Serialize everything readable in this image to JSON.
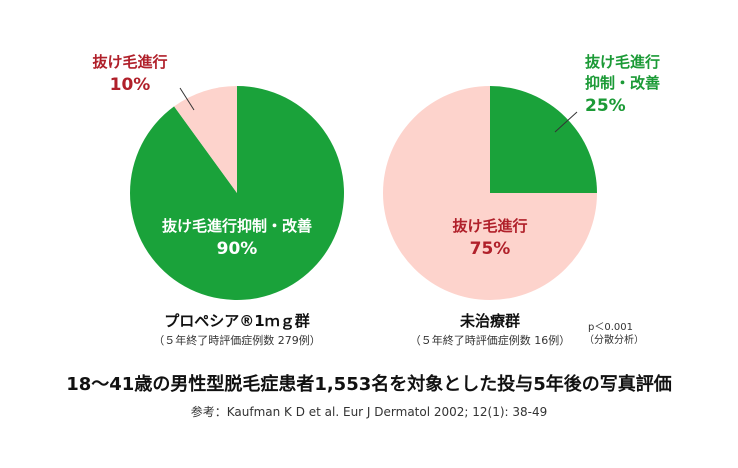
{
  "chart_data": [
    {
      "type": "pie",
      "title": "プロペシア®1ｍｇ群",
      "subtitle": "（５年終了時評価症例数 279例）",
      "categories": [
        "抜け毛進行抑制・改善",
        "抜け毛進行"
      ],
      "values": [
        90,
        10
      ],
      "value_labels": [
        "90%",
        "10%"
      ],
      "colors": [
        "#1aa23a",
        "#fdd3cc"
      ]
    },
    {
      "type": "pie",
      "title": "未治療群",
      "subtitle": "（５年終了時評価症例数 16例）",
      "categories": [
        "抜け毛進行抑制・改善",
        "抜け毛進行"
      ],
      "values": [
        25,
        75
      ],
      "value_labels": [
        "25%",
        "75%"
      ],
      "colors": [
        "#1aa23a",
        "#fdd3cc"
      ]
    }
  ],
  "annotation": [
    "p＜0.001",
    "（分散分析）"
  ],
  "caption": "18～41歳の男性型脱毛症患者1,553名を対象とした投与5年後の写真評価",
  "reference": "参考：Kaufman K D et al. Eur J Dermatol 2002; 12(1): 38-49"
}
